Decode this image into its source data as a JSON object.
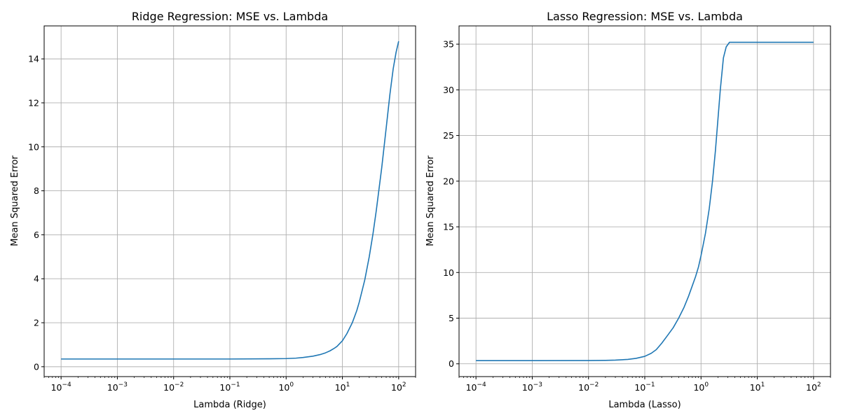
{
  "chart_data": [
    {
      "type": "line",
      "title": "Ridge Regression: MSE vs. Lambda",
      "xlabel": "Lambda (Ridge)",
      "ylabel": "Mean Squared Error",
      "xscale": "log",
      "xlim": [
        5e-05,
        200
      ],
      "ylim": [
        -0.45,
        15.5
      ],
      "xticks": [
        {
          "value": 0.0001,
          "base": "10",
          "exp": "−4"
        },
        {
          "value": 0.001,
          "base": "10",
          "exp": "−3"
        },
        {
          "value": 0.01,
          "base": "10",
          "exp": "−2"
        },
        {
          "value": 0.1,
          "base": "10",
          "exp": "−1"
        },
        {
          "value": 1,
          "base": "10",
          "exp": "0"
        },
        {
          "value": 10,
          "base": "10",
          "exp": "1"
        },
        {
          "value": 100,
          "base": "10",
          "exp": "2"
        }
      ],
      "yticks": [
        {
          "value": 0,
          "label": "0"
        },
        {
          "value": 2,
          "label": "2"
        },
        {
          "value": 4,
          "label": "4"
        },
        {
          "value": 6,
          "label": "6"
        },
        {
          "value": 8,
          "label": "8"
        },
        {
          "value": 10,
          "label": "10"
        },
        {
          "value": 12,
          "label": "12"
        },
        {
          "value": 14,
          "label": "14"
        }
      ],
      "grid": true,
      "color": "#1f77b4",
      "series": [
        {
          "x": [
            0.0001,
            0.001,
            0.01,
            0.1,
            0.5,
            1,
            1.5,
            2,
            3,
            4,
            5,
            6,
            7,
            8,
            10,
            12,
            15,
            18,
            20,
            25,
            30,
            35,
            40,
            50,
            60,
            70,
            80,
            90,
            100
          ],
          "y": [
            0.35,
            0.35,
            0.35,
            0.35,
            0.36,
            0.37,
            0.39,
            0.42,
            0.48,
            0.55,
            0.63,
            0.72,
            0.82,
            0.92,
            1.18,
            1.5,
            2.0,
            2.55,
            2.95,
            3.95,
            5.0,
            6.05,
            7.1,
            9.05,
            10.85,
            12.4,
            13.55,
            14.3,
            14.8
          ]
        }
      ]
    },
    {
      "type": "line",
      "title": "Lasso Regression: MSE vs. Lambda",
      "xlabel": "Lambda (Lasso)",
      "ylabel": "Mean Squared Error",
      "xscale": "log",
      "xlim": [
        5e-05,
        200
      ],
      "ylim": [
        -1.4,
        37
      ],
      "xticks": [
        {
          "value": 0.0001,
          "base": "10",
          "exp": "−4"
        },
        {
          "value": 0.001,
          "base": "10",
          "exp": "−3"
        },
        {
          "value": 0.01,
          "base": "10",
          "exp": "−2"
        },
        {
          "value": 0.1,
          "base": "10",
          "exp": "−1"
        },
        {
          "value": 1,
          "base": "10",
          "exp": "0"
        },
        {
          "value": 10,
          "base": "10",
          "exp": "1"
        },
        {
          "value": 100,
          "base": "10",
          "exp": "2"
        }
      ],
      "yticks": [
        {
          "value": 0,
          "label": "0"
        },
        {
          "value": 5,
          "label": "5"
        },
        {
          "value": 10,
          "label": "10"
        },
        {
          "value": 15,
          "label": "15"
        },
        {
          "value": 20,
          "label": "20"
        },
        {
          "value": 25,
          "label": "25"
        },
        {
          "value": 30,
          "label": "30"
        },
        {
          "value": 35,
          "label": "35"
        }
      ],
      "grid": true,
      "color": "#1f77b4",
      "series": [
        {
          "x": [
            0.0001,
            0.001,
            0.01,
            0.02,
            0.03,
            0.05,
            0.07,
            0.1,
            0.13,
            0.16,
            0.2,
            0.25,
            0.32,
            0.4,
            0.5,
            0.6,
            0.7,
            0.8,
            0.9,
            1.0,
            1.2,
            1.4,
            1.6,
            1.8,
            2.0,
            2.2,
            2.5,
            2.8,
            3.2,
            4,
            10,
            100
          ],
          "y": [
            0.35,
            0.35,
            0.36,
            0.38,
            0.41,
            0.48,
            0.6,
            0.82,
            1.15,
            1.55,
            2.25,
            3.05,
            3.95,
            5.0,
            6.2,
            7.4,
            8.55,
            9.55,
            10.6,
            11.85,
            14.3,
            17.0,
            20.0,
            23.3,
            26.8,
            30.0,
            33.5,
            34.7,
            35.2,
            35.2,
            35.2,
            35.2
          ]
        }
      ]
    }
  ]
}
